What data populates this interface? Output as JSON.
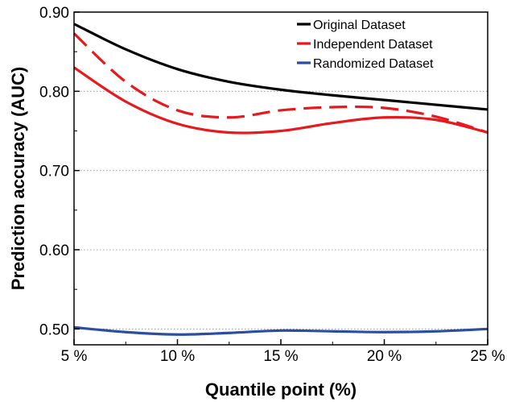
{
  "chart_data": {
    "type": "line",
    "title": "",
    "xlabel": "Quantile point (%)",
    "ylabel": "Prediction accuracy (AUC)",
    "xlim": [
      5,
      25
    ],
    "ylim": [
      0.48,
      0.9
    ],
    "x_ticks": [
      5,
      10,
      15,
      20,
      25
    ],
    "x_tick_labels": [
      "5 %",
      "10 %",
      "15 %",
      "20 %",
      "25 %"
    ],
    "y_ticks": [
      0.5,
      0.6,
      0.7,
      0.8,
      0.9
    ],
    "y_tick_labels": [
      "0.50",
      "0.60",
      "0.70",
      "0.80",
      "0.90"
    ],
    "grid": "horizontal dotted",
    "legend_position": "top-right",
    "series": [
      {
        "name": "Original Dataset",
        "color": "#000000",
        "style": "solid",
        "x": [
          5,
          7.5,
          10,
          12.5,
          15,
          17.5,
          20,
          22.5,
          25
        ],
        "values": [
          0.885,
          0.853,
          0.828,
          0.812,
          0.802,
          0.795,
          0.789,
          0.783,
          0.777
        ]
      },
      {
        "name": "Independent Dataset",
        "color": "#e8191c",
        "style": "solid",
        "x": [
          5,
          7.5,
          10,
          12.5,
          15,
          17.5,
          20,
          22.5,
          25
        ],
        "values": [
          0.83,
          0.787,
          0.759,
          0.748,
          0.75,
          0.76,
          0.767,
          0.764,
          0.748
        ]
      },
      {
        "name": "",
        "color": "#e8191c",
        "style": "dashed",
        "x": [
          5,
          7.5,
          10,
          12.5,
          15,
          17.5,
          20,
          22.5,
          25
        ],
        "values": [
          0.873,
          0.812,
          0.776,
          0.767,
          0.776,
          0.78,
          0.779,
          0.768,
          0.748
        ]
      },
      {
        "name": "Randomized Dataset",
        "color": "#2b4ea3",
        "style": "solid",
        "x": [
          5,
          7.5,
          10,
          12.5,
          15,
          17.5,
          20,
          22.5,
          25
        ],
        "values": [
          0.502,
          0.496,
          0.493,
          0.495,
          0.498,
          0.497,
          0.496,
          0.497,
          0.5
        ]
      }
    ]
  }
}
